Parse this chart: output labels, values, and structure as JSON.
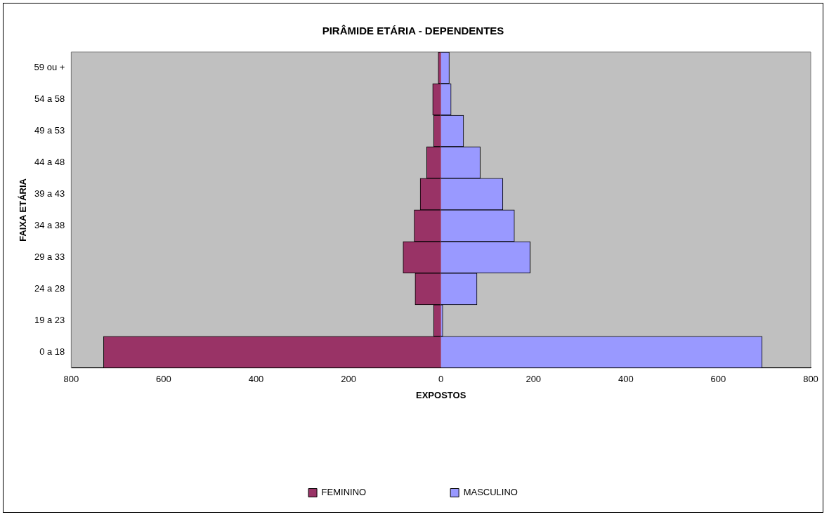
{
  "chart_data": {
    "type": "bar",
    "orientation": "horizontal",
    "stacked": true,
    "title": "PIRÂMIDE ETÁRIA - DEPENDENTES",
    "xlabel": "EXPOSTOS",
    "ylabel": "FAIXA ETÁRIA",
    "categories": [
      "59 ou +",
      "54 a 58",
      "49 a 53",
      "44 a 48",
      "39 a 43",
      "34 a 38",
      "29 a 33",
      "24 a 28",
      "19 a 23",
      "0 a 18"
    ],
    "series": [
      {
        "name": "FEMININO",
        "color": "#993366",
        "values": [
          -6,
          -18,
          -16,
          -31,
          -45,
          -58,
          -82,
          -56,
          -16,
          -730
        ]
      },
      {
        "name": "MASCULINO",
        "color": "#9999ff",
        "values": [
          18,
          22,
          49,
          85,
          134,
          159,
          193,
          78,
          4,
          695
        ]
      }
    ],
    "xlim": [
      -800,
      800
    ],
    "xticks": [
      {
        "value": -800,
        "label": "800"
      },
      {
        "value": -600,
        "label": "600"
      },
      {
        "value": -400,
        "label": "400"
      },
      {
        "value": -200,
        "label": "200"
      },
      0,
      200,
      400,
      600,
      800
    ],
    "grid": false,
    "legend": "bottom"
  }
}
